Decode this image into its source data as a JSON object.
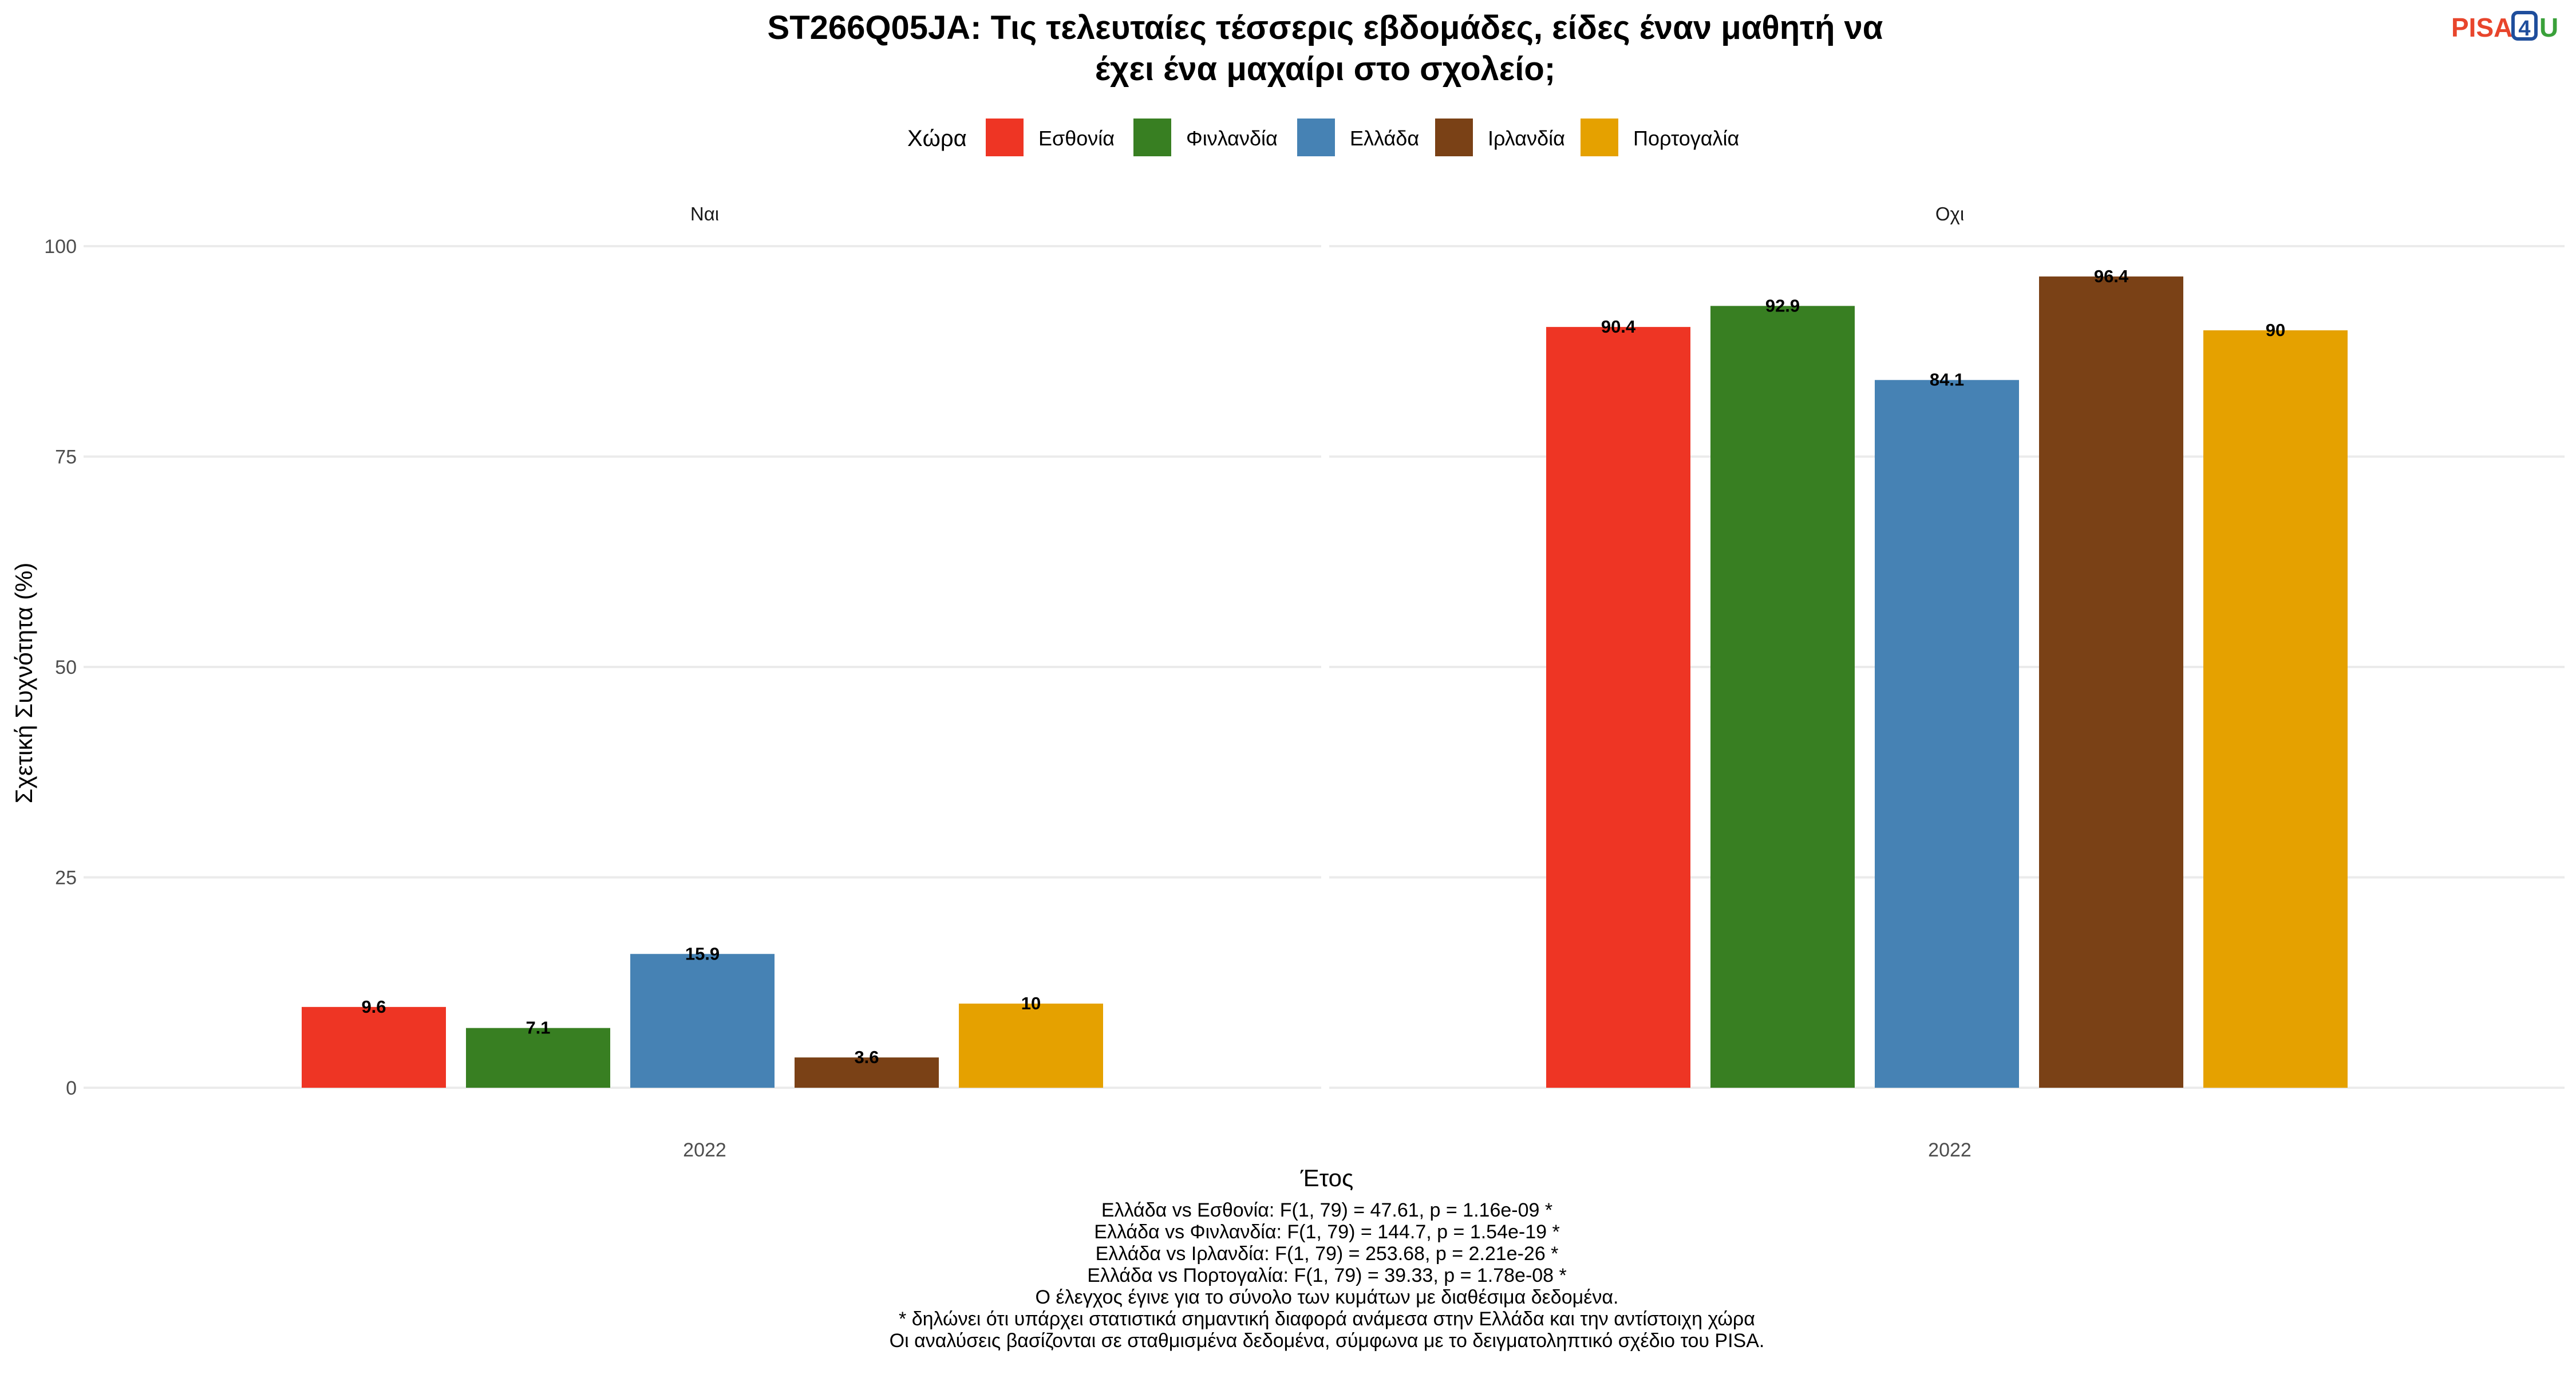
{
  "logo": {
    "text_a": "PISA",
    "text_b": "4",
    "text_c": "U",
    "color_a": "#e8452c",
    "color_b": "#1f4e9c",
    "color_c": "#3aa13a"
  },
  "chart_data": {
    "type": "bar",
    "title_line1": "ST266Q05JA: Τις τελευταίες τέσσερις εβδομάδες, είδες έναν μαθητή να",
    "title_line2": "έχει ένα μαχαίρι στο σχολείο;",
    "legend_title": "Χώρα",
    "legend_position": "top",
    "series": [
      {
        "name": "Εσθονία",
        "color": "#ee3524"
      },
      {
        "name": "Φινλανδία",
        "color": "#387f22"
      },
      {
        "name": "Ελλάδα",
        "color": "#4682b4"
      },
      {
        "name": "Ιρλανδία",
        "color": "#7a4116"
      },
      {
        "name": "Πορτογαλία",
        "color": "#e5a100"
      }
    ],
    "facets": [
      {
        "label": "Ναι",
        "x_tick": "2022",
        "values": [
          9.6,
          7.1,
          15.9,
          3.6,
          10
        ],
        "value_labels": [
          "9.6",
          "7.1",
          "15.9",
          "3.6",
          "10"
        ]
      },
      {
        "label": "Οχι",
        "x_tick": "2022",
        "values": [
          90.4,
          92.9,
          84.1,
          96.4,
          90
        ],
        "value_labels": [
          "90.4",
          "92.9",
          "84.1",
          "96.4",
          "90"
        ]
      }
    ],
    "xlabel": "Έτος",
    "ylabel": "Σχετική Συχνότητα (%)",
    "ylim": [
      0,
      100
    ],
    "yticks": [
      0,
      25,
      50,
      75,
      100
    ],
    "ytick_labels": [
      "0",
      "25",
      "50",
      "75",
      "100"
    ],
    "grid": true
  },
  "caption": [
    "Ελλάδα vs Εσθονία: F(1, 79) = 47.61, p = 1.16e-09 *",
    "Ελλάδα vs Φινλανδία: F(1, 79) = 144.7, p = 1.54e-19 *",
    "Ελλάδα vs Ιρλανδία: F(1, 79) = 253.68, p = 2.21e-26 *",
    "Ελλάδα vs Πορτογαλία: F(1, 79) = 39.33, p = 1.78e-08 *",
    "Ο έλεγχος έγινε για το σύνολο των κυμάτων με διαθέσιμα δεδομένα.",
    "* δηλώνει ότι υπάρχει στατιστικά σημαντική διαφορά ανάμεσα στην Ελλάδα και την αντίστοιχη χώρα",
    "Οι αναλύσεις βασίζονται σε σταθμισμένα δεδομένα, σύμφωνα με το δειγματοληπτικό σχέδιο του PISA."
  ]
}
